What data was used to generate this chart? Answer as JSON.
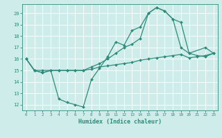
{
  "xlabel": "Humidex (Indice chaleur)",
  "background_color": "#ceecea",
  "grid_color": "#ffffff",
  "line_color": "#2e8b7a",
  "xlim": [
    -0.5,
    23.5
  ],
  "ylim": [
    11.5,
    20.8
  ],
  "yticks": [
    12,
    13,
    14,
    15,
    16,
    17,
    18,
    19,
    20
  ],
  "xticks": [
    0,
    1,
    2,
    3,
    4,
    5,
    6,
    7,
    8,
    9,
    10,
    11,
    12,
    13,
    14,
    15,
    16,
    17,
    18,
    19,
    20,
    21,
    22,
    23
  ],
  "line1_x": [
    0,
    1,
    2,
    3,
    4,
    5,
    6,
    7,
    8,
    9,
    10,
    11,
    12,
    13,
    14,
    15,
    16,
    17,
    18,
    19,
    20,
    22,
    23
  ],
  "line1_y": [
    16.0,
    15.0,
    14.8,
    15.0,
    12.5,
    12.2,
    12.0,
    11.8,
    14.2,
    15.2,
    16.2,
    17.5,
    17.2,
    18.5,
    18.8,
    20.0,
    20.5,
    20.2,
    19.5,
    19.2,
    16.5,
    17.0,
    16.5
  ],
  "line2_x": [
    0,
    1,
    2,
    3,
    4,
    5,
    6,
    7,
    8,
    9,
    10,
    11,
    12,
    13,
    14,
    15,
    16,
    17,
    18,
    19,
    20,
    21,
    22,
    23
  ],
  "line2_y": [
    16.0,
    15.0,
    15.0,
    15.0,
    15.0,
    15.0,
    15.0,
    15.0,
    15.1,
    15.3,
    15.4,
    15.5,
    15.6,
    15.7,
    15.9,
    16.0,
    16.1,
    16.2,
    16.3,
    16.4,
    16.1,
    16.2,
    16.3,
    16.5
  ],
  "line3_x": [
    0,
    1,
    2,
    3,
    4,
    5,
    6,
    7,
    8,
    9,
    10,
    11,
    12,
    13,
    14,
    15,
    16,
    17,
    18,
    19,
    20,
    21,
    22,
    23
  ],
  "line3_y": [
    16.0,
    15.0,
    14.8,
    15.0,
    15.0,
    15.0,
    15.0,
    15.0,
    15.3,
    15.6,
    16.0,
    16.5,
    17.0,
    17.3,
    17.8,
    20.0,
    20.5,
    20.2,
    19.5,
    17.0,
    16.5,
    16.3,
    16.2,
    16.5
  ]
}
